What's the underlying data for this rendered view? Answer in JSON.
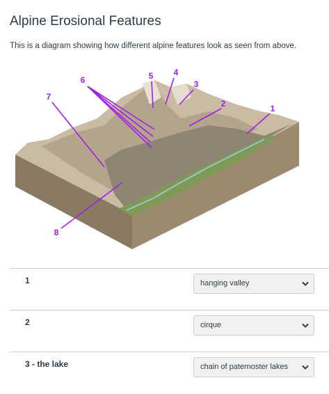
{
  "header": {
    "title": "Alpine Erosional Features",
    "description": "This is a diagram showing how different alpine features look as seen from above."
  },
  "diagram": {
    "labels": [
      "1",
      "2",
      "3",
      "4",
      "5",
      "6",
      "7",
      "8"
    ]
  },
  "questions": [
    {
      "label": "1",
      "answer": "hanging valley"
    },
    {
      "label": "2",
      "answer": "cirque"
    },
    {
      "label": "3 - the lake",
      "answer": "chain of paternoster lakes"
    }
  ]
}
